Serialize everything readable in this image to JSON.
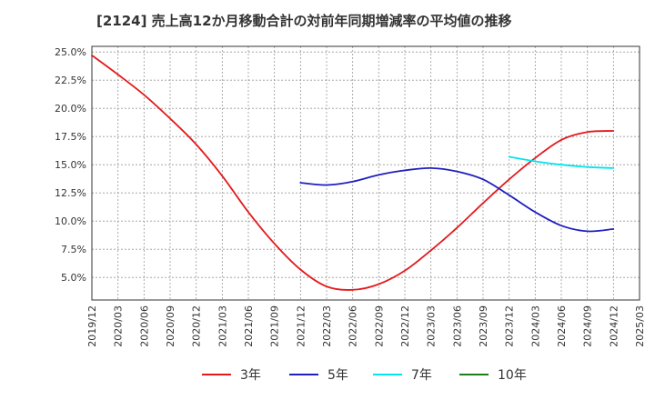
{
  "title": "[2124]  売上高12か月移動合計の対前年同期増減率の平均値の推移",
  "chart_data": {
    "type": "line",
    "ylim": [
      3.0,
      25.5
    ],
    "xlim": [
      "2019-12",
      "2025-03"
    ],
    "grid": true,
    "legend_placement": "bottom",
    "y_ticks": [
      "25.0%",
      "22.5%",
      "20.0%",
      "17.5%",
      "15.0%",
      "12.5%",
      "10.0%",
      "7.5%",
      "5.0%"
    ],
    "y_tick_values": [
      25.0,
      22.5,
      20.0,
      17.5,
      15.0,
      12.5,
      10.0,
      7.5,
      5.0
    ],
    "x_ticks": [
      "2019/12",
      "2020/03",
      "2020/06",
      "2020/09",
      "2020/12",
      "2021/03",
      "2021/06",
      "2021/09",
      "2021/12",
      "2022/03",
      "2022/06",
      "2022/09",
      "2022/12",
      "2023/03",
      "2023/06",
      "2023/09",
      "2023/12",
      "2024/03",
      "2024/06",
      "2024/09",
      "2024/12",
      "2025/03"
    ],
    "series": [
      {
        "name": "3年",
        "color": "#e31a1c",
        "points": [
          [
            "2019/12",
            24.7
          ],
          [
            "2020/03",
            23.0
          ],
          [
            "2020/06",
            21.2
          ],
          [
            "2020/09",
            19.1
          ],
          [
            "2020/12",
            16.8
          ],
          [
            "2021/03",
            14.0
          ],
          [
            "2021/06",
            10.8
          ],
          [
            "2021/09",
            8.0
          ],
          [
            "2021/12",
            5.7
          ],
          [
            "2022/03",
            4.2
          ],
          [
            "2022/06",
            3.9
          ],
          [
            "2022/09",
            4.4
          ],
          [
            "2022/12",
            5.6
          ],
          [
            "2023/03",
            7.4
          ],
          [
            "2023/06",
            9.4
          ],
          [
            "2023/09",
            11.6
          ],
          [
            "2023/12",
            13.7
          ],
          [
            "2024/03",
            15.6
          ],
          [
            "2024/06",
            17.2
          ],
          [
            "2024/09",
            17.9
          ],
          [
            "2024/12",
            18.0
          ]
        ]
      },
      {
        "name": "5年",
        "color": "#1f1fbf",
        "points": [
          [
            "2021/12",
            13.4
          ],
          [
            "2022/03",
            13.2
          ],
          [
            "2022/06",
            13.5
          ],
          [
            "2022/09",
            14.1
          ],
          [
            "2022/12",
            14.5
          ],
          [
            "2023/03",
            14.7
          ],
          [
            "2023/06",
            14.4
          ],
          [
            "2023/09",
            13.7
          ],
          [
            "2023/12",
            12.3
          ],
          [
            "2024/03",
            10.8
          ],
          [
            "2024/06",
            9.6
          ],
          [
            "2024/09",
            9.1
          ],
          [
            "2024/12",
            9.3
          ]
        ]
      },
      {
        "name": "7年",
        "color": "#00e5ee",
        "points": [
          [
            "2023/12",
            15.7
          ],
          [
            "2024/03",
            15.3
          ],
          [
            "2024/06",
            15.0
          ],
          [
            "2024/09",
            14.8
          ],
          [
            "2024/12",
            14.7
          ]
        ]
      },
      {
        "name": "10年",
        "color": "#1a7f1a",
        "points": []
      }
    ]
  }
}
